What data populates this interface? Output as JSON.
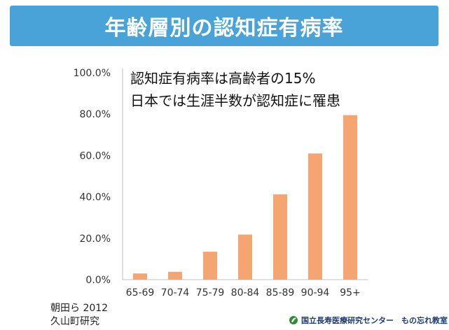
{
  "header": {
    "title": "年齢層別の認知症有病率"
  },
  "annotations": {
    "line1": "認知症有病率は高齢者の15%",
    "line2": "日本では生涯半数が認知症に罹患"
  },
  "source": {
    "line1": "朝田ら 2012",
    "line2": "久山町研究"
  },
  "footer": {
    "org": "国立長寿医療研究センター　もの忘れ教室",
    "logo_icon": "leaf-logo-icon"
  },
  "colors": {
    "banner": "#4aa3d8",
    "bar": "#f4a572"
  },
  "chart_data": {
    "type": "bar",
    "categories": [
      "65-69",
      "70-74",
      "75-79",
      "80-84",
      "85-89",
      "90-94",
      "95+"
    ],
    "values": [
      3.0,
      3.8,
      13.5,
      21.8,
      41.2,
      61.0,
      79.5
    ],
    "yticks": [
      "0.0%",
      "20.0%",
      "40.0%",
      "60.0%",
      "80.0%",
      "100.0%"
    ],
    "ylim": [
      0,
      100
    ],
    "grid": false
  }
}
